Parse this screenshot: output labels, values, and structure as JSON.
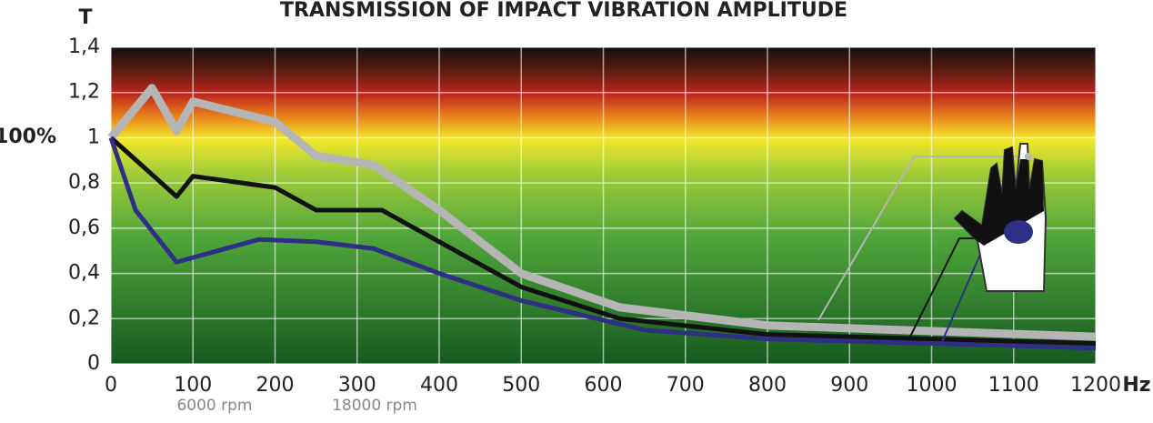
{
  "chart_data": {
    "type": "line",
    "title": "TRANSMISSION OF IMPACT VIBRATION AMPLITUDE",
    "y_label": "T",
    "x_label": "Hz",
    "annotations": [
      "100%",
      "6000 rpm",
      "18000 rpm"
    ],
    "xlim": [
      0,
      1200
    ],
    "xticks": [
      0,
      100,
      200,
      300,
      400,
      500,
      600,
      700,
      800,
      900,
      1000,
      1100,
      1200
    ],
    "ylim": [
      0,
      1.4
    ],
    "yticks": [
      0,
      {
        "value": 0.2,
        "label": "0,2"
      },
      {
        "value": 0.4,
        "label": "0,4"
      },
      {
        "value": 0.6,
        "label": "0,6"
      },
      {
        "value": 0.8,
        "label": "0,8"
      },
      1,
      {
        "value": 1.2,
        "label": "1,2"
      },
      {
        "value": 1.4,
        "label": "1,4"
      }
    ],
    "grid": true,
    "series": [
      {
        "color": "#b5b5b5",
        "x": [
          0,
          50,
          80,
          100,
          200,
          250,
          320,
          400,
          500,
          620,
          800,
          1200
        ],
        "values": [
          1.0,
          1.22,
          1.03,
          1.16,
          1.07,
          0.92,
          0.88,
          0.68,
          0.4,
          0.25,
          0.17,
          0.12
        ]
      },
      {
        "color": "#111111",
        "x": [
          0,
          80,
          100,
          200,
          250,
          330,
          500,
          620,
          800,
          1200
        ],
        "values": [
          1.0,
          0.74,
          0.83,
          0.78,
          0.68,
          0.68,
          0.34,
          0.2,
          0.13,
          0.09
        ]
      },
      {
        "color": "#2e2f85",
        "x": [
          0,
          30,
          80,
          180,
          250,
          320,
          400,
          500,
          650,
          800,
          1200
        ],
        "values": [
          1.0,
          0.68,
          0.45,
          0.55,
          0.54,
          0.51,
          0.4,
          0.28,
          0.15,
          0.11,
          0.07
        ]
      }
    ]
  }
}
